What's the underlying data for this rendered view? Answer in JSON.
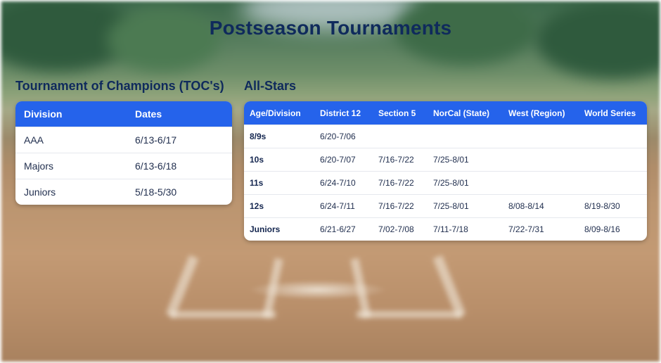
{
  "page": {
    "title": "Postseason Tournaments"
  },
  "toc": {
    "heading": "Tournament of Champions (TOC's)",
    "columns": [
      "Division",
      "Dates"
    ],
    "rows": [
      [
        "AAA",
        "6/13-6/17"
      ],
      [
        "Majors",
        "6/13-6/18"
      ],
      [
        "Juniors",
        "5/18-5/30"
      ]
    ]
  },
  "allstars": {
    "heading": "All-Stars",
    "columns": [
      "Age/Division",
      "District 12",
      "Section 5",
      "NorCal (State)",
      "West (Region)",
      "World Series"
    ],
    "rows": [
      [
        "8/9s",
        "6/20-7/06",
        "",
        "",
        "",
        ""
      ],
      [
        "10s",
        "6/20-7/07",
        "7/16-7/22",
        "7/25-8/01",
        "",
        ""
      ],
      [
        "11s",
        "6/24-7/10",
        "7/16-7/22",
        "7/25-8/01",
        "",
        ""
      ],
      [
        "12s",
        "6/24-7/11",
        "7/16-7/22",
        "7/25-8/01",
        "8/08-8/14",
        "8/19-8/30"
      ],
      [
        "Juniors",
        "6/21-6/27",
        "7/02-7/08",
        "7/11-7/18",
        "7/22-7/31",
        "8/09-8/16"
      ]
    ]
  },
  "colors": {
    "header_bg": "#2563eb",
    "title_text": "#0f2a5c",
    "card_bg": "#ffffff"
  }
}
